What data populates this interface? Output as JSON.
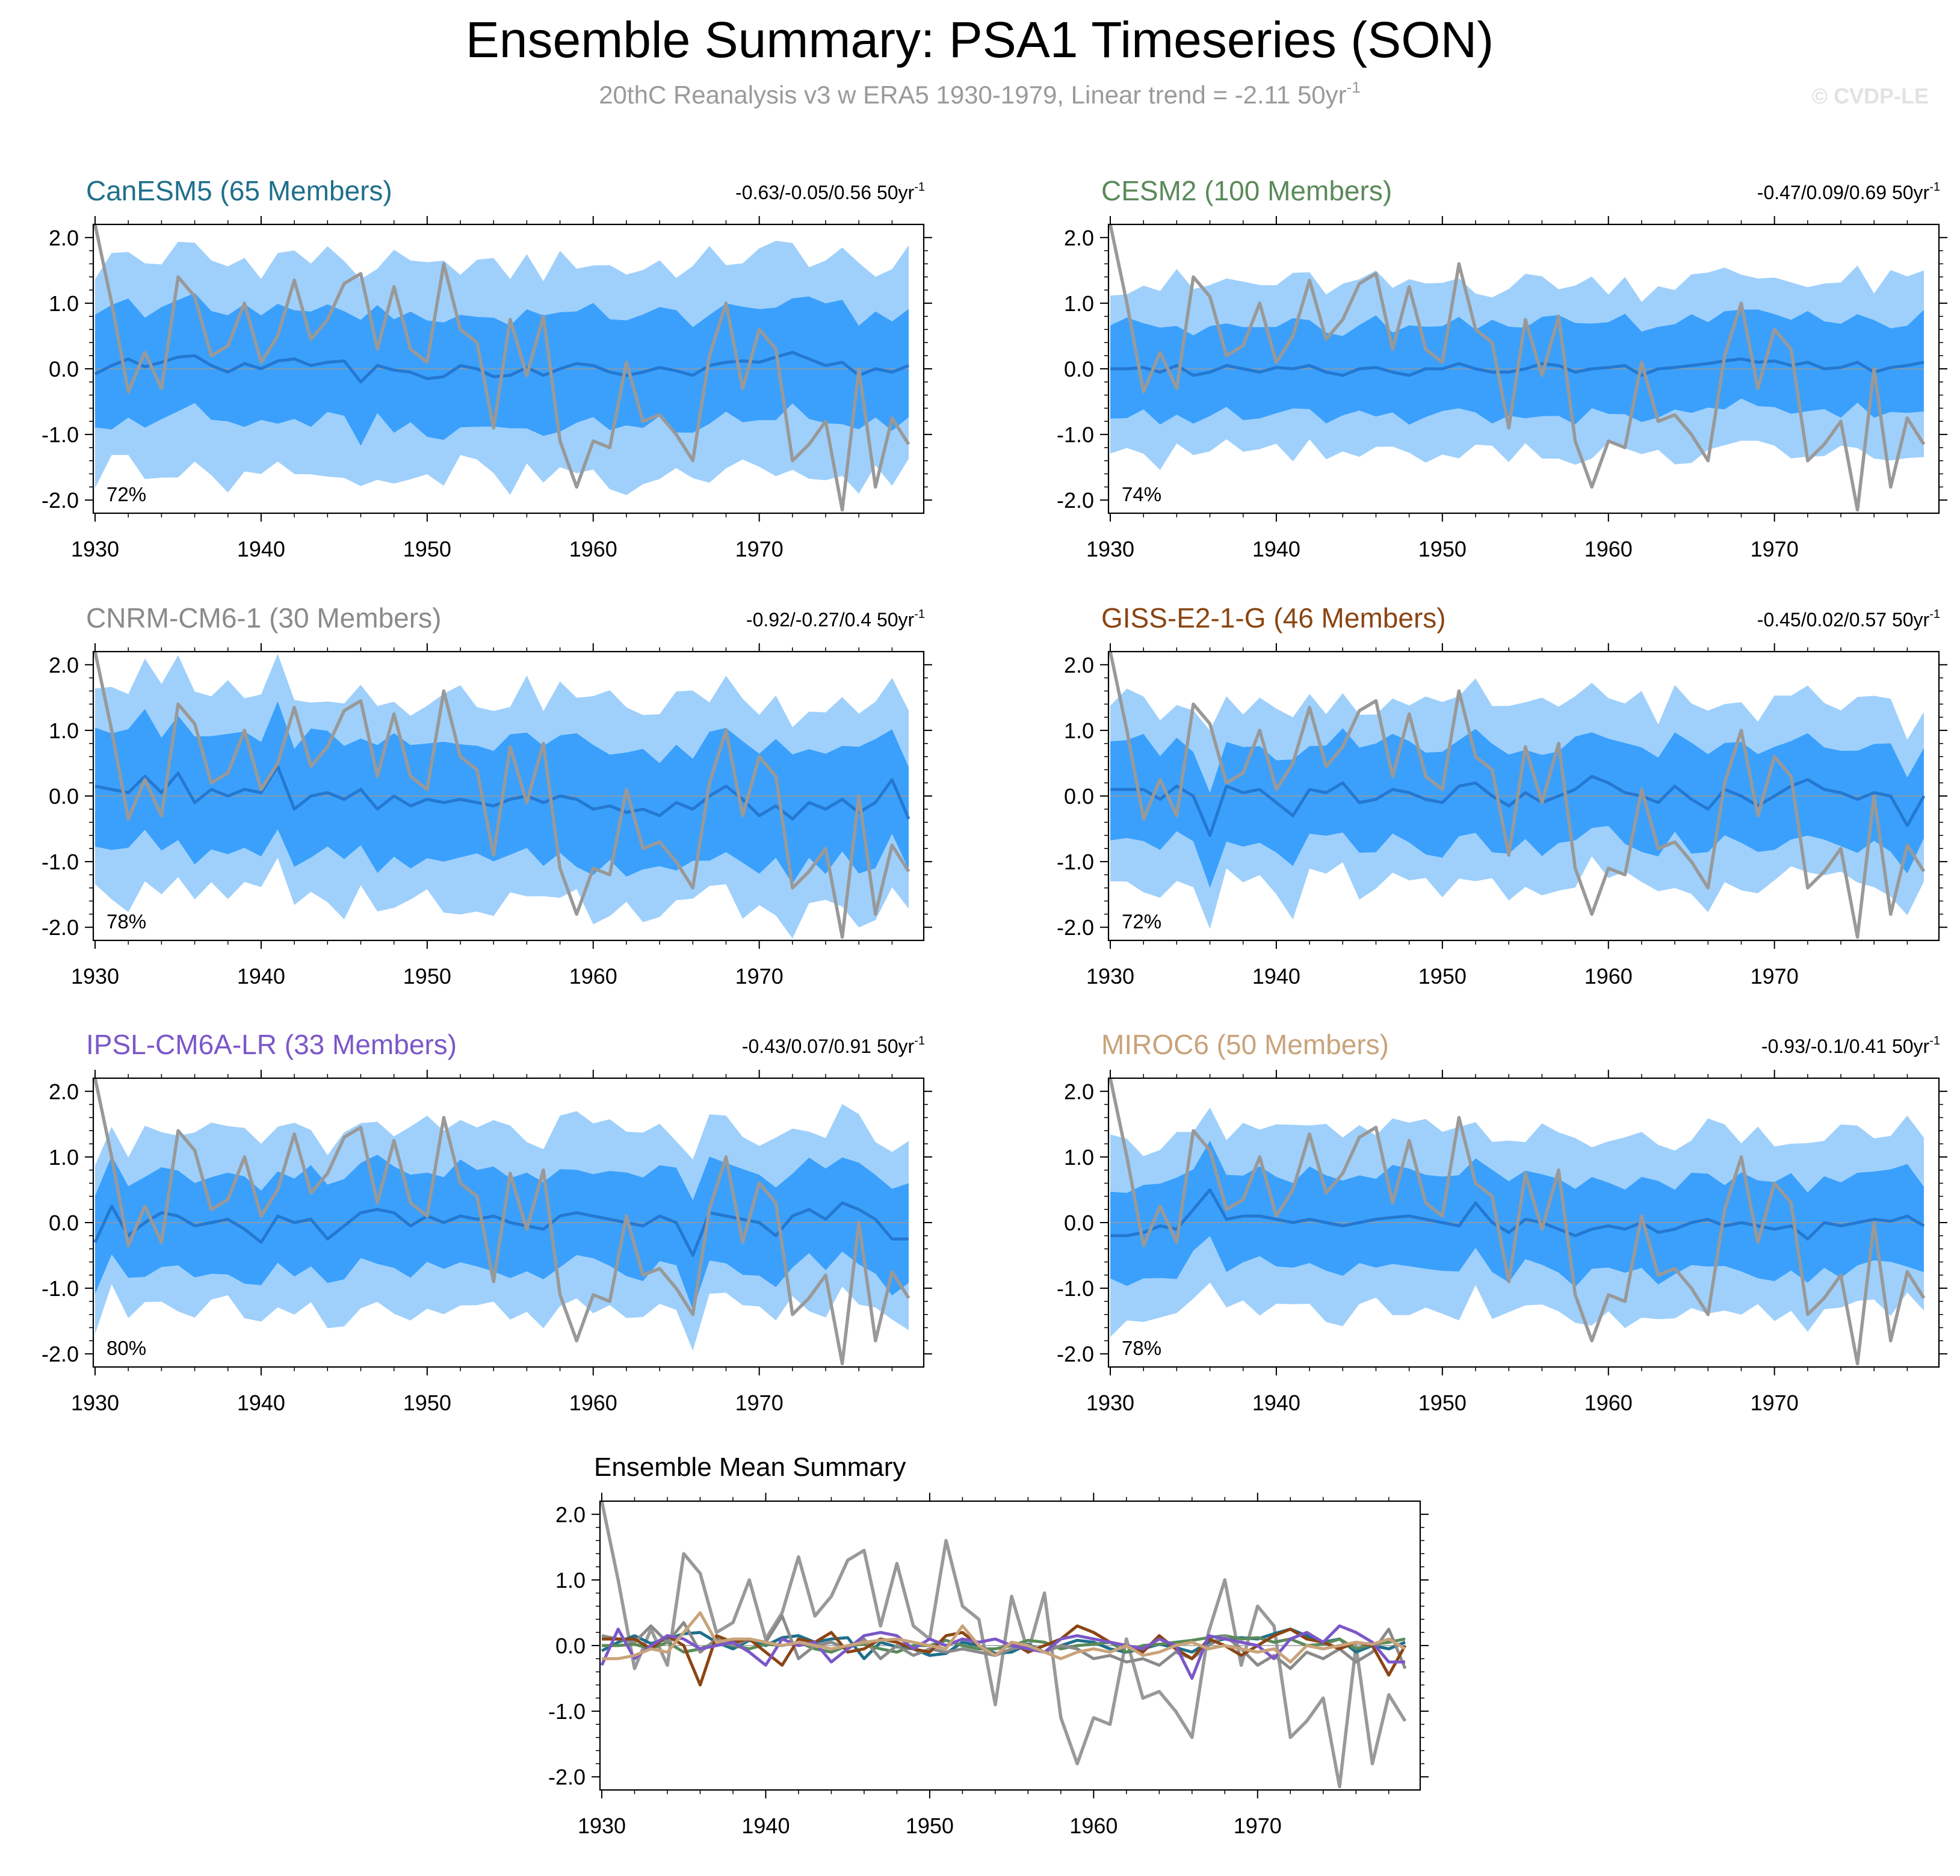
{
  "header": {
    "title": "Ensemble Summary: PSA1 Timeseries (SON)",
    "subtitle_main": "20thC Reanalysis v3 w ERA5 1930-1979, Linear trend = -2.11 50yr",
    "subtitle_sup": "-1",
    "watermark": "© CVDP-LE"
  },
  "colors": {
    "outer_band": "#9fd0fb",
    "inner_band": "#3aa0fc",
    "ensemble_mean": "#2478d0",
    "observations": "#999999",
    "zero_line": "#999999"
  },
  "chart_data": {
    "type": "line",
    "years": [
      1930,
      1931,
      1932,
      1933,
      1934,
      1935,
      1936,
      1937,
      1938,
      1939,
      1940,
      1941,
      1942,
      1943,
      1944,
      1945,
      1946,
      1947,
      1948,
      1949,
      1950,
      1951,
      1952,
      1953,
      1954,
      1955,
      1956,
      1957,
      1958,
      1959,
      1960,
      1961,
      1962,
      1963,
      1964,
      1965,
      1966,
      1967,
      1968,
      1969,
      1970,
      1971,
      1972,
      1973,
      1974,
      1975,
      1976,
      1977,
      1978,
      1979
    ],
    "observed_series": {
      "values": [
        2.2,
        1.0,
        -0.35,
        0.25,
        -0.3,
        1.4,
        1.1,
        0.2,
        0.35,
        1.0,
        0.1,
        0.5,
        1.35,
        0.45,
        0.75,
        1.3,
        1.45,
        0.3,
        1.25,
        0.3,
        0.1,
        1.6,
        0.6,
        0.4,
        -0.9,
        0.75,
        -0.1,
        0.8,
        -1.1,
        -1.8,
        -1.1,
        -1.2,
        0.1,
        -0.8,
        -0.7,
        -1.0,
        -1.4,
        0.2,
        1.0,
        -0.3,
        0.6,
        0.3,
        -1.4,
        -1.15,
        -0.8,
        -2.15,
        0.0,
        -1.8,
        -0.75,
        -1.15
      ]
    },
    "xticks": [
      1930,
      1940,
      1950,
      1960,
      1970
    ],
    "yticks": [
      -2.0,
      -1.0,
      0.0,
      1.0,
      2.0
    ],
    "ytick_labels": [
      "-2.0",
      "-1.0",
      "0.0",
      "1.0",
      "2.0"
    ],
    "ylim": [
      -2.2,
      2.2
    ],
    "panels": [
      {
        "name": "CanESM5 (65 Members)",
        "title_color": "#1f6f8b",
        "trend": "-0.63/-0.05/0.56 50yr",
        "trend_sup": "-1",
        "percent": "72%",
        "ensemble_mean": [
          -0.08,
          0.05,
          0.15,
          0.03,
          0.1,
          0.18,
          0.2,
          0.05,
          -0.05,
          0.08,
          0.0,
          0.12,
          0.15,
          0.05,
          0.1,
          0.12,
          -0.2,
          0.05,
          -0.02,
          -0.05,
          -0.15,
          -0.12,
          0.05,
          0.0,
          -0.12,
          -0.1,
          0.02,
          -0.1,
          0.0,
          0.08,
          0.05,
          -0.05,
          -0.1,
          -0.05,
          0.02,
          -0.03,
          -0.1,
          0.05,
          0.1,
          0.12,
          0.1,
          0.18,
          0.25,
          0.15,
          0.05,
          0.1,
          -0.1,
          0.0,
          -0.05,
          0.05
        ],
        "inner_spread": 0.85,
        "outer_spread": 1.6
      },
      {
        "name": "CESM2 (100 Members)",
        "title_color": "#5a8a5a",
        "trend": "-0.47/0.09/0.69 50yr",
        "trend_sup": "-1",
        "percent": "74%",
        "ensemble_mean": [
          0.0,
          0.0,
          0.02,
          -0.05,
          0.05,
          -0.1,
          -0.05,
          0.05,
          0.0,
          -0.05,
          0.02,
          0.0,
          0.05,
          -0.05,
          -0.1,
          0.0,
          0.02,
          -0.05,
          -0.1,
          0.0,
          0.0,
          0.08,
          0.0,
          -0.05,
          -0.05,
          0.0,
          0.08,
          0.05,
          -0.05,
          0.0,
          0.02,
          0.05,
          -0.1,
          0.0,
          0.02,
          0.05,
          0.08,
          0.12,
          0.15,
          0.1,
          0.12,
          0.05,
          0.1,
          0.0,
          0.02,
          0.1,
          -0.05,
          0.02,
          0.05,
          0.1
        ],
        "inner_spread": 0.7,
        "outer_spread": 1.3
      },
      {
        "name": "CNRM-CM6-1 (30 Members)",
        "title_color": "#8a8a8a",
        "trend": "-0.92/-0.27/0.4 50yr",
        "trend_sup": "-1",
        "percent": "78%",
        "ensemble_mean": [
          0.15,
          0.1,
          0.05,
          0.3,
          0.05,
          0.35,
          -0.1,
          0.1,
          0.0,
          0.1,
          0.05,
          0.45,
          -0.2,
          0.0,
          0.05,
          -0.05,
          0.1,
          -0.2,
          0.0,
          -0.15,
          -0.05,
          -0.1,
          -0.05,
          -0.1,
          -0.15,
          -0.05,
          0.0,
          -0.1,
          0.0,
          -0.05,
          -0.2,
          -0.15,
          -0.25,
          -0.2,
          -0.3,
          -0.1,
          -0.2,
          0.0,
          0.15,
          -0.05,
          -0.3,
          -0.15,
          -0.35,
          -0.1,
          -0.2,
          -0.05,
          -0.25,
          -0.1,
          0.25,
          -0.35
        ],
        "inner_spread": 0.9,
        "outer_spread": 1.6
      },
      {
        "name": "GISS-E2-1-G (46 Members)",
        "title_color": "#8b4513",
        "trend": "-0.45/0.02/0.57 50yr",
        "trend_sup": "-1",
        "percent": "72%",
        "ensemble_mean": [
          0.1,
          0.1,
          0.1,
          -0.05,
          0.15,
          0.0,
          -0.6,
          0.15,
          0.05,
          0.1,
          -0.1,
          -0.3,
          0.1,
          0.05,
          0.2,
          -0.1,
          -0.05,
          0.1,
          0.05,
          -0.05,
          -0.1,
          0.15,
          0.2,
          0.0,
          -0.15,
          0.05,
          -0.1,
          0.0,
          0.1,
          0.3,
          0.2,
          0.05,
          0.0,
          -0.1,
          0.15,
          -0.05,
          -0.2,
          0.1,
          0.0,
          -0.15,
          0.0,
          0.15,
          0.25,
          0.1,
          0.05,
          -0.05,
          0.05,
          0.0,
          -0.45,
          0.0
        ],
        "inner_spread": 0.75,
        "outer_spread": 1.4
      },
      {
        "name": "IPSL-CM6A-LR (33 Members)",
        "title_color": "#7b57c8",
        "trend": "-0.43/0.07/0.91 50yr",
        "trend_sup": "-1",
        "percent": "80%",
        "ensemble_mean": [
          -0.3,
          0.25,
          -0.2,
          0.0,
          0.15,
          0.1,
          -0.05,
          0.0,
          0.05,
          -0.1,
          -0.3,
          0.1,
          0.0,
          0.05,
          -0.25,
          -0.05,
          0.15,
          0.2,
          0.15,
          -0.05,
          0.1,
          0.0,
          0.1,
          0.05,
          0.1,
          0.0,
          -0.05,
          -0.1,
          0.1,
          0.15,
          0.1,
          0.05,
          0.0,
          -0.05,
          0.1,
          0.0,
          -0.5,
          0.15,
          0.1,
          0.05,
          0.0,
          -0.2,
          0.1,
          0.2,
          0.05,
          0.3,
          0.2,
          0.05,
          -0.25,
          -0.25
        ],
        "inner_spread": 0.75,
        "outer_spread": 1.35
      },
      {
        "name": "MIROC6 (50 Members)",
        "title_color": "#c9a37a",
        "trend": "-0.93/-0.1/0.41 50yr",
        "trend_sup": "-1",
        "percent": "78%",
        "ensemble_mean": [
          -0.2,
          -0.2,
          -0.15,
          -0.05,
          -0.1,
          0.2,
          0.5,
          0.05,
          0.1,
          0.1,
          0.05,
          0.0,
          0.05,
          0.0,
          -0.05,
          0.0,
          0.05,
          0.08,
          0.1,
          0.05,
          0.0,
          -0.05,
          0.3,
          0.0,
          -0.15,
          0.05,
          0.0,
          -0.1,
          -0.2,
          -0.1,
          -0.05,
          -0.1,
          0.0,
          -0.15,
          -0.1,
          0.0,
          0.05,
          -0.05,
          0.0,
          -0.05,
          -0.1,
          -0.05,
          -0.25,
          0.0,
          -0.05,
          0.0,
          0.05,
          0.02,
          0.1,
          -0.05
        ],
        "inner_spread": 0.7,
        "outer_spread": 1.35
      }
    ],
    "summary": {
      "title": "Ensemble Mean Summary",
      "xticks": [
        1930,
        1940,
        1950,
        1960,
        1970
      ],
      "yticks": [
        -2.0,
        -1.0,
        0.0,
        1.0,
        2.0
      ],
      "ytick_labels": [
        "-2.0",
        "-1.0",
        "0.0",
        "1.0",
        "2.0"
      ]
    }
  }
}
